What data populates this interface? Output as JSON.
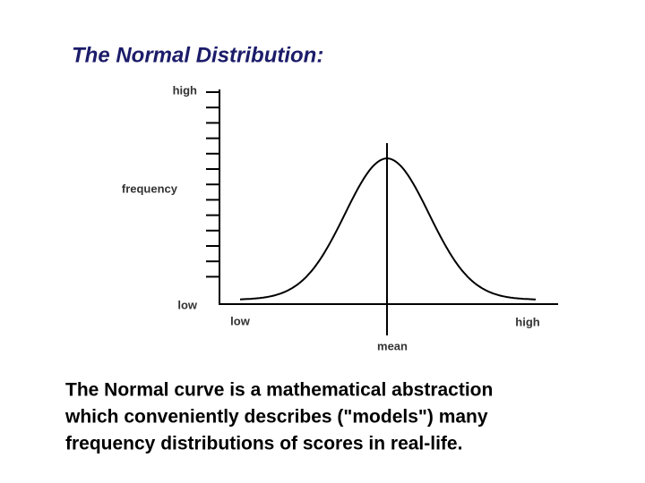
{
  "title": "The Normal Distribution:",
  "diagram": {
    "y_axis": {
      "top_label": "high",
      "label": "frequency",
      "bottom_label": "low"
    },
    "x_axis": {
      "left_label": "low",
      "center_label": "mean",
      "right_label": "high"
    }
  },
  "caption": {
    "lines": [
      "The Normal curve is a mathematical abstraction",
      "which conveniently describes (\"models\") many",
      "frequency distributions of scores in real-life."
    ]
  }
}
